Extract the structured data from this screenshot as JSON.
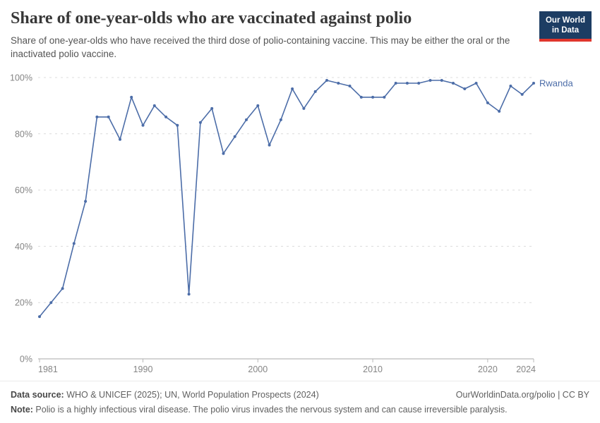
{
  "header": {
    "title": "Share of one-year-olds who are vaccinated against polio",
    "subtitle": "Share of one-year-olds who have received the third dose of polio-containing vaccine. This may be either the oral or the inactivated polio vaccine.",
    "logo": {
      "line1": "Our World",
      "line2": "in Data"
    }
  },
  "chart_data": {
    "type": "line",
    "title": "Share of one-year-olds who are vaccinated against polio",
    "xlabel": "",
    "ylabel": "",
    "ylim": [
      0,
      100
    ],
    "grid": "horizontal-dashed",
    "legend_position": "end-of-line-label",
    "x": [
      1981,
      1982,
      1983,
      1984,
      1985,
      1986,
      1987,
      1988,
      1989,
      1990,
      1991,
      1992,
      1993,
      1994,
      1995,
      1996,
      1997,
      1998,
      1999,
      2000,
      2001,
      2002,
      2003,
      2004,
      2005,
      2006,
      2007,
      2008,
      2009,
      2010,
      2011,
      2012,
      2013,
      2014,
      2015,
      2016,
      2017,
      2018,
      2019,
      2020,
      2021,
      2022,
      2023,
      2024
    ],
    "series": [
      {
        "name": "Rwanda",
        "color": "#4c6da8",
        "values": [
          15,
          20,
          25,
          41,
          56,
          86,
          86,
          78,
          93,
          83,
          90,
          86,
          83,
          23,
          84,
          89,
          73,
          79,
          85,
          90,
          76,
          85,
          96,
          89,
          95,
          99,
          98,
          97,
          93,
          93,
          93,
          98,
          98,
          98,
          99,
          99,
          98,
          96,
          98,
          91,
          88,
          97,
          94,
          98
        ]
      }
    ],
    "x_ticks": [
      1981,
      1990,
      2000,
      2010,
      2020,
      2024
    ],
    "y_ticks": [
      0,
      20,
      40,
      60,
      80,
      100
    ],
    "y_tick_labels": [
      "0%",
      "20%",
      "40%",
      "60%",
      "80%",
      "100%"
    ],
    "end_label": "Rwanda"
  },
  "footer": {
    "datasource_label": "Data source:",
    "datasource": " WHO & UNICEF (2025); UN, World Population Prospects (2024)",
    "credit": "OurWorldinData.org/polio",
    "credit_sep": " | ",
    "license": "CC BY",
    "note_label": "Note:",
    "note": " Polio is a highly infectious viral disease. The polio virus invades the nervous system and can cause irreversible paralysis."
  },
  "colors": {
    "line": "#4c6da8",
    "title_text": "#383838",
    "subtitle_text": "#555555",
    "axis_text": "#858585",
    "gridline": "#dcdcdc",
    "axis_line": "#a8a8a8",
    "tick_mark": "#b8b8b8",
    "logo_bg": "#1d3d63",
    "logo_stripe": "#e0362c",
    "footer_text": "#606060"
  }
}
